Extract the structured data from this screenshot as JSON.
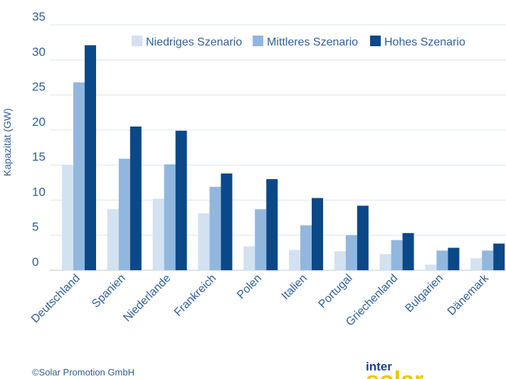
{
  "chart_data": {
    "type": "bar",
    "ylabel": "Kapazität (GW)",
    "ylim": [
      0,
      35
    ],
    "yticks": [
      0,
      5,
      10,
      15,
      20,
      25,
      30,
      35
    ],
    "grid": true,
    "legend_position": "top",
    "categories": [
      "Deutschland",
      "Spanien",
      "Niederlande",
      "Frankreich",
      "Polen",
      "Italien",
      "Portugal",
      "Griechenland",
      "Bulgarien",
      "Dänemark"
    ],
    "series": [
      {
        "name": "Niedriges Szenario",
        "color": "#d3e2f1",
        "values": [
          15,
          8.7,
          10.2,
          8.1,
          3.4,
          2.9,
          2.7,
          2.3,
          0.8,
          1.7
        ]
      },
      {
        "name": "Mittleres Szenario",
        "color": "#92b7de",
        "values": [
          26.8,
          15.9,
          15.1,
          11.9,
          8.7,
          6.4,
          5.0,
          4.3,
          2.8,
          2.8
        ]
      },
      {
        "name": "Hohes Szenario",
        "color": "#0b4888",
        "values": [
          32.1,
          20.5,
          19.9,
          13.8,
          13.0,
          10.3,
          9.2,
          5.3,
          3.2,
          3.8
        ]
      }
    ]
  },
  "footer": {
    "copyright": "©Solar Promotion GmbH",
    "logo_inter": "inter",
    "logo_solar": "solar"
  }
}
